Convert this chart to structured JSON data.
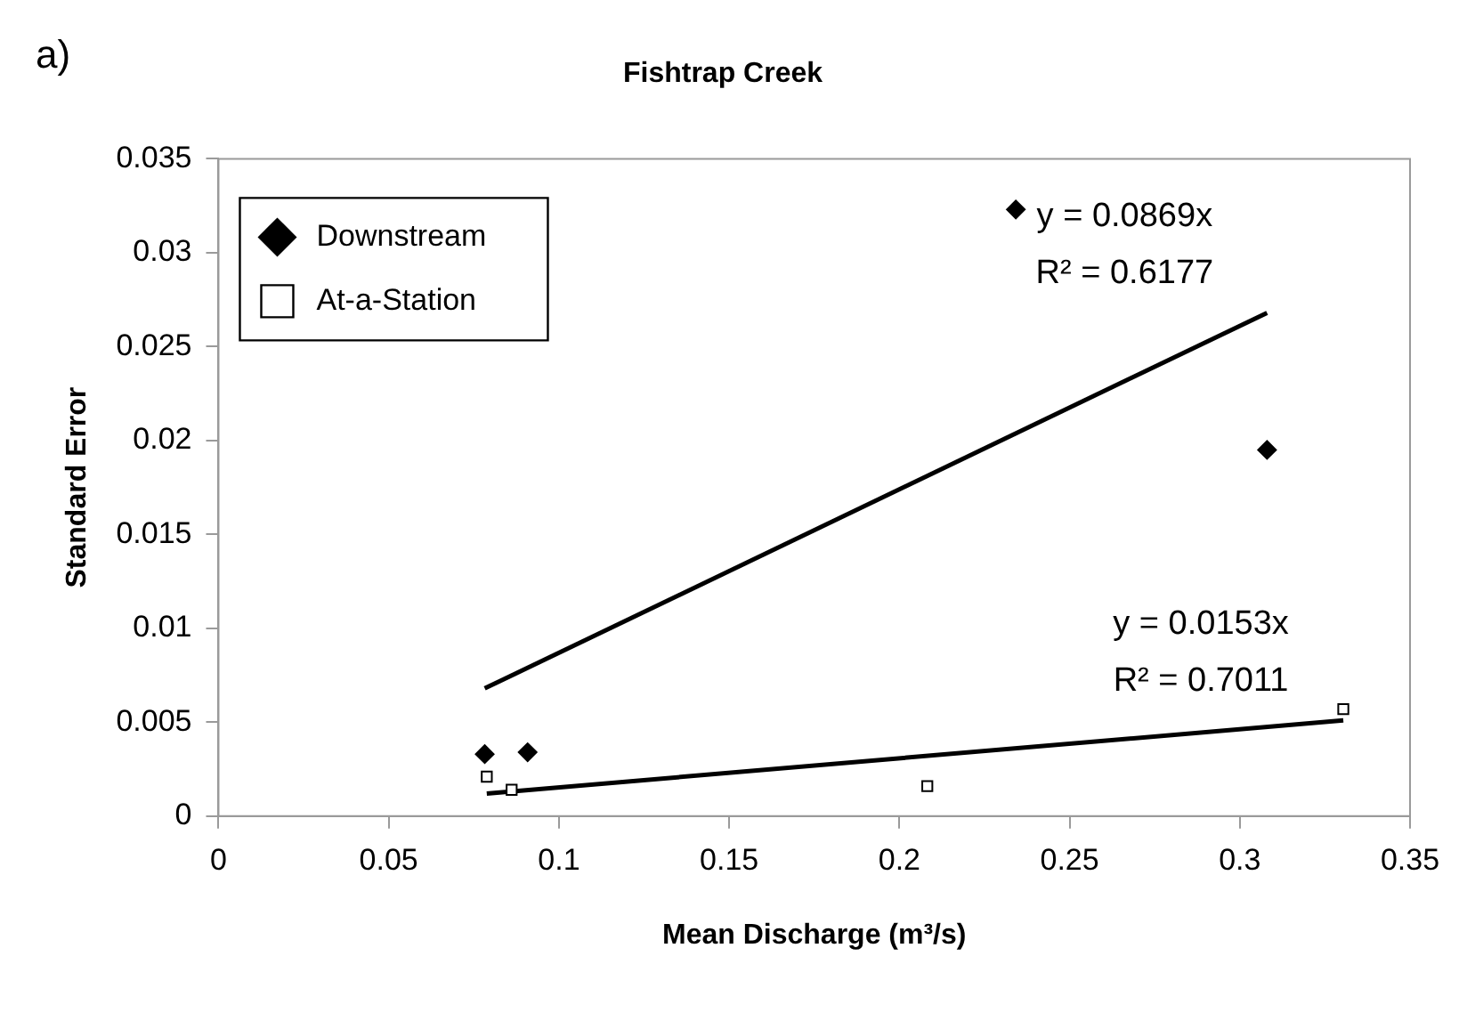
{
  "chart_data": {
    "type": "scatter",
    "title": "Fishtrap Creek",
    "xlabel": "Mean Discharge (m³/s)",
    "ylabel": "Standard Error",
    "xlim": [
      0,
      0.35
    ],
    "xticks": [
      0,
      0.05,
      0.1,
      0.15,
      0.2,
      0.25,
      0.3,
      0.35
    ],
    "ylim": [
      0,
      0.035
    ],
    "yticks": [
      0,
      0.005,
      0.01,
      0.015,
      0.02,
      0.025,
      0.03,
      0.035
    ],
    "grid": false,
    "legend": "top left",
    "series": [
      {
        "name": "Downstream",
        "type": "scatter",
        "marker": "diamond",
        "color": "#000000",
        "x": [
          0.0782,
          0.0908,
          0.2342,
          0.308
        ],
        "values": [
          0.0033,
          0.0034,
          0.0323,
          0.0195
        ]
      },
      {
        "name": "At-a-Station",
        "type": "scatter",
        "marker": "square",
        "color": "#000000",
        "x": [
          0.0788,
          0.0861,
          0.2082,
          0.3304
        ],
        "values": [
          0.0021,
          0.0014,
          0.0016,
          0.0057
        ]
      },
      {
        "type": "line",
        "marker": "none",
        "color": "#000000",
        "x": [
          0.0782,
          0.308
        ],
        "values": [
          0.0068,
          0.0268
        ]
      },
      {
        "type": "line",
        "marker": "none",
        "color": "#000000",
        "x": [
          0.0788,
          0.3304
        ],
        "values": [
          0.0012,
          0.0051
        ]
      }
    ],
    "annotations": [
      "a)",
      "y = 0.0869x",
      "R² = 0.6177",
      "y = 0.0153x",
      "R² = 0.7011"
    ]
  }
}
